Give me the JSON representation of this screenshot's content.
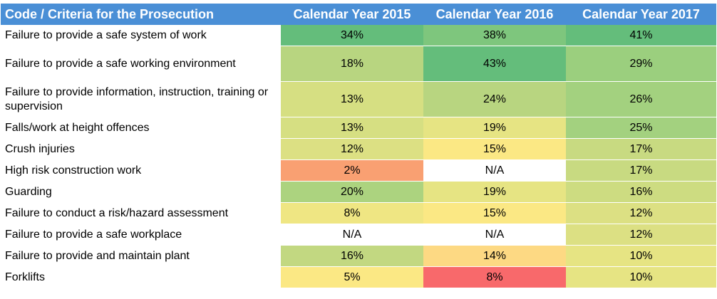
{
  "chart_data": {
    "type": "table",
    "columns": [
      "Code / Criteria for the Prosecution",
      "Calendar Year 2015",
      "Calendar Year 2016",
      "Calendar Year 2017"
    ],
    "rows": [
      {
        "label": "Failure to provide a safe system of work",
        "values": [
          "34%",
          "38%",
          "41%"
        ],
        "colors": [
          "#64bd7b",
          "#7ec67d",
          "#64bd7b"
        ]
      },
      {
        "label": "Failure to provide a safe working environment",
        "values": [
          "18%",
          "43%",
          "29%"
        ],
        "colors": [
          "#b8d580",
          "#64bd7b",
          "#9bcf7e"
        ]
      },
      {
        "label": "Failure to provide information, instruction, training or supervision",
        "values": [
          "13%",
          "24%",
          "26%"
        ],
        "colors": [
          "#d6df82",
          "#b8d580",
          "#a3d17f"
        ]
      },
      {
        "label": "Falls/work at height offences",
        "values": [
          "13%",
          "19%",
          "25%"
        ],
        "colors": [
          "#d6df82",
          "#e6e483",
          "#a3d17f"
        ]
      },
      {
        "label": "Crush injuries",
        "values": [
          "12%",
          "15%",
          "17%"
        ],
        "colors": [
          "#dce083",
          "#fbe884",
          "#c8da81"
        ]
      },
      {
        "label": "High risk construction work",
        "values": [
          "2%",
          "N/A",
          "17%"
        ],
        "colors": [
          "#f9a072",
          "#ffffff",
          "#c8da81"
        ]
      },
      {
        "label": "Guarding",
        "values": [
          "20%",
          "19%",
          "16%"
        ],
        "colors": [
          "#acd37f",
          "#e6e483",
          "#cddc81"
        ]
      },
      {
        "label": "Failure to conduct a risk/hazard assessment",
        "values": [
          "8%",
          "15%",
          "12%"
        ],
        "colors": [
          "#efe683",
          "#fbe884",
          "#dce083"
        ]
      },
      {
        "label": "Failure to provide a safe workplace",
        "values": [
          "N/A",
          "N/A",
          "12%"
        ],
        "colors": [
          "#ffffff",
          "#ffffff",
          "#dce083"
        ]
      },
      {
        "label": "Failure to provide and maintain plant",
        "values": [
          "16%",
          "14%",
          "10%"
        ],
        "colors": [
          "#c2d881",
          "#fdd983",
          "#e6e483"
        ]
      },
      {
        "label": "Forklifts",
        "values": [
          "5%",
          "8%",
          "10%"
        ],
        "colors": [
          "#fbe884",
          "#f8696b",
          "#e6e483"
        ]
      }
    ],
    "header_color": "#4a8fd6"
  }
}
